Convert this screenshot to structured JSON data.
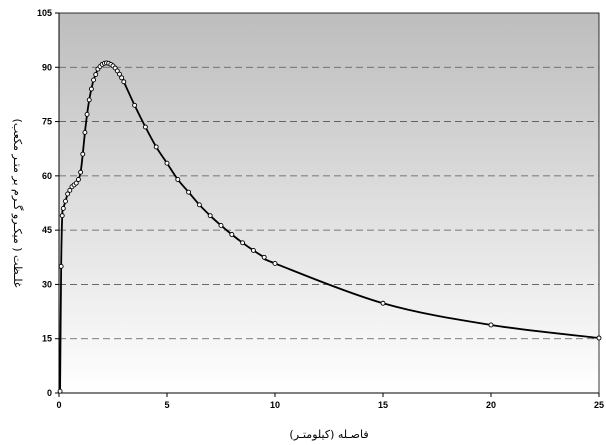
{
  "chart_data": {
    "type": "line",
    "title": "",
    "xlabel": "فاصـله (کیلومتـر)",
    "ylabel": "غلـظت ( میکـرو گـرم بر متـر مکعب)",
    "xlim": [
      0,
      25
    ],
    "ylim": [
      0,
      105
    ],
    "x_ticks": [
      0,
      5,
      10,
      15,
      20,
      25
    ],
    "y_ticks": [
      0,
      15,
      30,
      45,
      60,
      75,
      90,
      105
    ],
    "grid": "horizontal dashed",
    "background": "vertical gradient light gray to white",
    "legend": "none",
    "series": [
      {
        "color": "#000000",
        "marker": "open circle",
        "points": [
          [
            0.05,
            0.5
          ],
          [
            0.1,
            35
          ],
          [
            0.15,
            49
          ],
          [
            0.2,
            51
          ],
          [
            0.3,
            53
          ],
          [
            0.4,
            55
          ],
          [
            0.5,
            56
          ],
          [
            0.6,
            57
          ],
          [
            0.7,
            57.5
          ],
          [
            0.8,
            58
          ],
          [
            0.9,
            59
          ],
          [
            1.0,
            61
          ],
          [
            1.1,
            66
          ],
          [
            1.2,
            72
          ],
          [
            1.3,
            77
          ],
          [
            1.4,
            81
          ],
          [
            1.5,
            84
          ],
          [
            1.6,
            86.5
          ],
          [
            1.7,
            88
          ],
          [
            1.8,
            89.5
          ],
          [
            1.9,
            90.2
          ],
          [
            2.0,
            90.8
          ],
          [
            2.1,
            91.1
          ],
          [
            2.2,
            91.2
          ],
          [
            2.3,
            91.1
          ],
          [
            2.4,
            90.8
          ],
          [
            2.5,
            90.4
          ],
          [
            2.6,
            89.8
          ],
          [
            2.7,
            89
          ],
          [
            2.8,
            88.1
          ],
          [
            2.9,
            87.1
          ],
          [
            3.0,
            86
          ],
          [
            3.5,
            79.5
          ],
          [
            4.0,
            73.5
          ],
          [
            4.5,
            68
          ],
          [
            5.0,
            63.5
          ],
          [
            5.5,
            59
          ],
          [
            6.0,
            55.5
          ],
          [
            6.5,
            52
          ],
          [
            7.0,
            49
          ],
          [
            7.5,
            46.3
          ],
          [
            8.0,
            43.8
          ],
          [
            8.5,
            41.5
          ],
          [
            9.0,
            39.4
          ],
          [
            9.5,
            37.5
          ],
          [
            10.0,
            35.8
          ],
          [
            15.0,
            24.8
          ],
          [
            20.0,
            18.8
          ],
          [
            25.0,
            15.2
          ]
        ]
      }
    ]
  }
}
